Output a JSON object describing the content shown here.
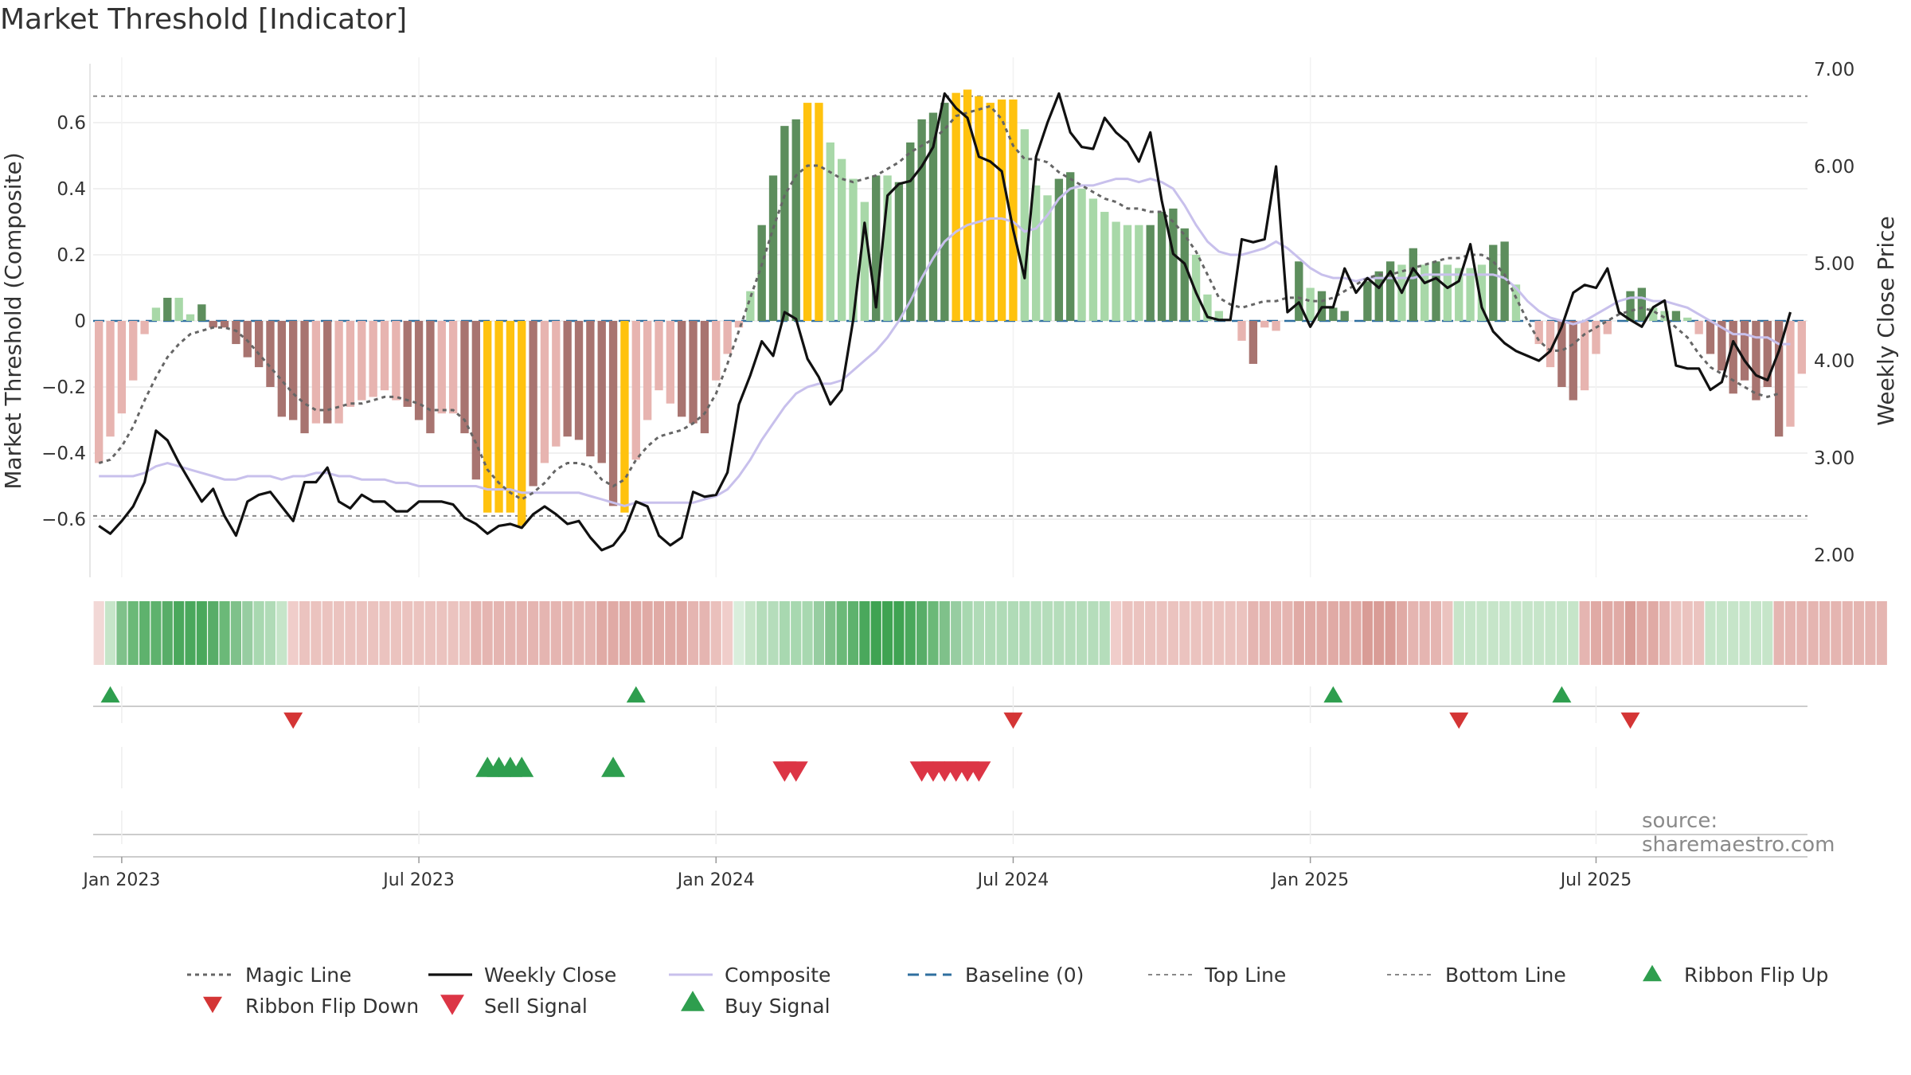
{
  "title": "Market Threshold [Indicator]",
  "source": "source: sharemaestro.com",
  "chart_data": {
    "type": "bar",
    "title": "Market Threshold [Indicator]",
    "ylabel": "Market Threshold (Composite)",
    "y2label": "Weekly Close Price",
    "ylim": [
      -0.78,
      0.78
    ],
    "y2lim": [
      1.5,
      7.0
    ],
    "yticks": [
      "0.6",
      "0.4",
      "0.2",
      "0",
      "−0.2",
      "−0.4",
      "−0.6"
    ],
    "yticks_values": [
      0.6,
      0.4,
      0.2,
      0,
      -0.2,
      -0.4,
      -0.6
    ],
    "y2ticks": [
      "7.00",
      "6.00",
      "5.00",
      "4.00",
      "3.00",
      "2.00"
    ],
    "y2ticks_values": [
      7,
      6,
      5,
      4,
      3,
      2
    ],
    "xticks": [
      "Jan 2023",
      "Jul 2023",
      "Jan 2024",
      "Jul 2024",
      "Jan 2025",
      "Jul 2025"
    ],
    "xticks_weeks": [
      2,
      28,
      54,
      80,
      106,
      131
    ],
    "top_line": 0.68,
    "bottom_line": -0.59,
    "baseline": 0,
    "composite_bars": [
      -0.43,
      -0.35,
      -0.28,
      -0.18,
      -0.04,
      0.04,
      0.07,
      0.07,
      0.02,
      0.05,
      -0.02,
      -0.02,
      -0.07,
      -0.11,
      -0.14,
      -0.2,
      -0.29,
      -0.3,
      -0.34,
      -0.31,
      -0.31,
      -0.31,
      -0.26,
      -0.24,
      -0.23,
      -0.21,
      -0.24,
      -0.26,
      -0.3,
      -0.34,
      -0.28,
      -0.28,
      -0.34,
      -0.48,
      -0.58,
      -0.58,
      -0.58,
      -0.62,
      -0.5,
      -0.43,
      -0.38,
      -0.35,
      -0.36,
      -0.41,
      -0.43,
      -0.56,
      -0.58,
      -0.42,
      -0.3,
      -0.21,
      -0.25,
      -0.29,
      -0.31,
      -0.34,
      -0.18,
      -0.1,
      -0.02,
      0.09,
      0.29,
      0.44,
      0.59,
      0.61,
      0.66,
      0.66,
      0.54,
      0.49,
      0.43,
      0.36,
      0.44,
      0.44,
      0.42,
      0.54,
      0.61,
      0.63,
      0.66,
      0.69,
      0.7,
      0.68,
      0.66,
      0.67,
      0.67,
      0.58,
      0.41,
      0.38,
      0.43,
      0.45,
      0.4,
      0.37,
      0.33,
      0.3,
      0.29,
      0.29,
      0.29,
      0.33,
      0.34,
      0.28,
      0.2,
      0.08,
      0.03,
      0.0,
      -0.06,
      -0.13,
      -0.02,
      -0.03,
      0.0,
      0.18,
      0.1,
      0.09,
      0.04,
      0.03,
      0.0,
      0.12,
      0.15,
      0.18,
      0.17,
      0.22,
      0.17,
      0.18,
      0.17,
      0.16,
      0.16,
      0.17,
      0.23,
      0.24,
      0.11,
      0.0,
      -0.07,
      -0.14,
      -0.2,
      -0.24,
      -0.21,
      -0.1,
      -0.04,
      0.0,
      0.09,
      0.1,
      0.04,
      0.03,
      0.03,
      0.01,
      -0.04,
      -0.1,
      -0.15,
      -0.22,
      -0.18,
      -0.24,
      -0.2,
      -0.35,
      -0.32,
      -0.16
    ],
    "bar_colors": [
      "#e7b4b0",
      "#e7b4b0",
      "#e7b4b0",
      "#e7b4b0",
      "#e7b4b0",
      "#a8d8a8",
      "#5d8e5d",
      "#a8d8a8",
      "#a8d8a8",
      "#5d8e5d",
      "#a87470",
      "#a87470",
      "#a87470",
      "#a87470",
      "#a87470",
      "#a87470",
      "#a87470",
      "#a87470",
      "#a87470",
      "#e7b4b0",
      "#a87470",
      "#e7b4b0",
      "#e7b4b0",
      "#e7b4b0",
      "#e7b4b0",
      "#e7b4b0",
      "#e7b4b0",
      "#a87470",
      "#a87470",
      "#a87470",
      "#e7b4b0",
      "#e7b4b0",
      "#a87470",
      "#a87470",
      "#ffc20e",
      "#ffc20e",
      "#ffc20e",
      "#ffc20e",
      "#a87470",
      "#e7b4b0",
      "#e7b4b0",
      "#a87470",
      "#a87470",
      "#a87470",
      "#a87470",
      "#a87470",
      "#ffc20e",
      "#e7b4b0",
      "#e7b4b0",
      "#e7b4b0",
      "#e7b4b0",
      "#a87470",
      "#a87470",
      "#a87470",
      "#e7b4b0",
      "#e7b4b0",
      "#e7b4b0",
      "#a8d8a8",
      "#5d8e5d",
      "#5d8e5d",
      "#5d8e5d",
      "#5d8e5d",
      "#ffc20e",
      "#ffc20e",
      "#a8d8a8",
      "#a8d8a8",
      "#a8d8a8",
      "#a8d8a8",
      "#5d8e5d",
      "#a8d8a8",
      "#5d8e5d",
      "#5d8e5d",
      "#5d8e5d",
      "#5d8e5d",
      "#5d8e5d",
      "#ffc20e",
      "#ffc20e",
      "#ffc20e",
      "#ffc20e",
      "#ffc20e",
      "#ffc20e",
      "#a8d8a8",
      "#a8d8a8",
      "#a8d8a8",
      "#5d8e5d",
      "#5d8e5d",
      "#a8d8a8",
      "#a8d8a8",
      "#a8d8a8",
      "#a8d8a8",
      "#a8d8a8",
      "#a8d8a8",
      "#5d8e5d",
      "#5d8e5d",
      "#5d8e5d",
      "#5d8e5d",
      "#a8d8a8",
      "#a8d8a8",
      "#a8d8a8",
      "#a8d8a8",
      "#e7b4b0",
      "#a87470",
      "#e7b4b0",
      "#e7b4b0",
      "#a8d8a8",
      "#5d8e5d",
      "#a8d8a8",
      "#5d8e5d",
      "#5d8e5d",
      "#5d8e5d",
      "#a8d8a8",
      "#5d8e5d",
      "#5d8e5d",
      "#5d8e5d",
      "#a8d8a8",
      "#5d8e5d",
      "#a8d8a8",
      "#5d8e5d",
      "#a8d8a8",
      "#a8d8a8",
      "#a8d8a8",
      "#a8d8a8",
      "#5d8e5d",
      "#5d8e5d",
      "#a8d8a8",
      "#a8d8a8",
      "#e7b4b0",
      "#e7b4b0",
      "#a87470",
      "#a87470",
      "#e7b4b0",
      "#e7b4b0",
      "#e7b4b0",
      "#a8d8a8",
      "#5d8e5d",
      "#5d8e5d",
      "#a8d8a8",
      "#a8d8a8",
      "#5d8e5d",
      "#a8d8a8",
      "#e7b4b0",
      "#a87470",
      "#a87470",
      "#a87470",
      "#a87470",
      "#a87470",
      "#a87470",
      "#a87470",
      "#e7b4b0",
      "#e7b4b0"
    ],
    "magic_line": [
      -0.43,
      -0.42,
      -0.38,
      -0.32,
      -0.24,
      -0.17,
      -0.11,
      -0.07,
      -0.04,
      -0.03,
      -0.02,
      -0.02,
      -0.03,
      -0.06,
      -0.1,
      -0.14,
      -0.18,
      -0.22,
      -0.25,
      -0.27,
      -0.27,
      -0.26,
      -0.25,
      -0.25,
      -0.24,
      -0.23,
      -0.23,
      -0.24,
      -0.25,
      -0.27,
      -0.27,
      -0.27,
      -0.3,
      -0.37,
      -0.45,
      -0.49,
      -0.52,
      -0.54,
      -0.52,
      -0.49,
      -0.45,
      -0.43,
      -0.43,
      -0.44,
      -0.48,
      -0.5,
      -0.48,
      -0.42,
      -0.38,
      -0.35,
      -0.34,
      -0.33,
      -0.31,
      -0.28,
      -0.22,
      -0.13,
      -0.03,
      0.07,
      0.17,
      0.28,
      0.38,
      0.44,
      0.47,
      0.47,
      0.45,
      0.43,
      0.42,
      0.43,
      0.44,
      0.46,
      0.48,
      0.51,
      0.53,
      0.55,
      0.58,
      0.62,
      0.63,
      0.64,
      0.65,
      0.61,
      0.53,
      0.49,
      0.49,
      0.48,
      0.45,
      0.43,
      0.41,
      0.39,
      0.37,
      0.36,
      0.34,
      0.34,
      0.33,
      0.33,
      0.3,
      0.26,
      0.21,
      0.14,
      0.07,
      0.05,
      0.04,
      0.05,
      0.06,
      0.06,
      0.07,
      0.07,
      0.06,
      0.06,
      0.07,
      0.09,
      0.11,
      0.13,
      0.14,
      0.14,
      0.15,
      0.16,
      0.17,
      0.18,
      0.19,
      0.19,
      0.2,
      0.2,
      0.18,
      0.14,
      0.07,
      0.0,
      -0.06,
      -0.09,
      -0.09,
      -0.07,
      -0.04,
      -0.02,
      0.0,
      0.02,
      0.03,
      0.04,
      0.03,
      0.01,
      -0.02,
      -0.05,
      -0.1,
      -0.14,
      -0.16,
      -0.18,
      -0.2,
      -0.22,
      -0.23,
      -0.22
    ],
    "weekly_close": [
      2.3,
      2.22,
      2.35,
      2.5,
      2.75,
      3.28,
      3.18,
      2.95,
      2.75,
      2.55,
      2.68,
      2.4,
      2.2,
      2.55,
      2.62,
      2.65,
      2.5,
      2.35,
      2.75,
      2.75,
      2.9,
      2.55,
      2.48,
      2.62,
      2.55,
      2.55,
      2.45,
      2.45,
      2.55,
      2.55,
      2.55,
      2.52,
      2.38,
      2.32,
      2.22,
      2.3,
      2.32,
      2.28,
      2.42,
      2.5,
      2.42,
      2.32,
      2.35,
      2.18,
      2.05,
      2.1,
      2.25,
      2.55,
      2.5,
      2.2,
      2.1,
      2.18,
      2.65,
      2.6,
      2.62,
      2.85,
      3.55,
      3.85,
      4.2,
      4.05,
      4.5,
      4.43,
      4.02,
      3.83,
      3.55,
      3.7,
      4.42,
      5.42,
      4.55,
      5.7,
      5.82,
      5.85,
      6.0,
      6.2,
      6.75,
      6.6,
      6.5,
      6.1,
      6.05,
      5.95,
      5.35,
      4.85,
      6.1,
      6.45,
      6.75,
      6.35,
      6.2,
      6.18,
      6.5,
      6.35,
      6.25,
      6.05,
      6.35,
      5.65,
      5.1,
      5.0,
      4.7,
      4.45,
      4.42,
      4.42,
      5.25,
      5.22,
      5.25,
      6.0,
      4.5,
      4.6,
      4.35,
      4.55,
      4.55,
      4.95,
      4.7,
      4.85,
      4.75,
      4.92,
      4.7,
      4.95,
      4.8,
      4.85,
      4.75,
      4.82,
      5.2,
      4.55,
      4.3,
      4.18,
      4.1,
      4.05,
      4.0,
      4.1,
      4.35,
      4.7,
      4.78,
      4.75,
      4.95,
      4.5,
      4.42,
      4.35,
      4.55,
      4.62,
      3.95,
      3.92,
      3.92,
      3.7,
      3.78,
      4.2,
      4.0,
      3.85,
      3.8,
      4.1,
      4.5
    ],
    "composite_line": [
      -0.47,
      -0.47,
      -0.47,
      -0.47,
      -0.46,
      -0.44,
      -0.43,
      -0.44,
      -0.45,
      -0.46,
      -0.47,
      -0.48,
      -0.48,
      -0.47,
      -0.47,
      -0.47,
      -0.48,
      -0.47,
      -0.47,
      -0.46,
      -0.46,
      -0.47,
      -0.47,
      -0.48,
      -0.48,
      -0.48,
      -0.49,
      -0.49,
      -0.5,
      -0.5,
      -0.5,
      -0.5,
      -0.5,
      -0.5,
      -0.51,
      -0.51,
      -0.51,
      -0.52,
      -0.52,
      -0.52,
      -0.52,
      -0.52,
      -0.52,
      -0.53,
      -0.54,
      -0.55,
      -0.56,
      -0.55,
      -0.55,
      -0.55,
      -0.55,
      -0.55,
      -0.55,
      -0.54,
      -0.53,
      -0.51,
      -0.47,
      -0.42,
      -0.36,
      -0.31,
      -0.26,
      -0.22,
      -0.2,
      -0.19,
      -0.19,
      -0.18,
      -0.15,
      -0.12,
      -0.09,
      -0.05,
      0.0,
      0.06,
      0.13,
      0.19,
      0.24,
      0.27,
      0.29,
      0.3,
      0.31,
      0.31,
      0.3,
      0.27,
      0.28,
      0.32,
      0.37,
      0.4,
      0.41,
      0.41,
      0.42,
      0.43,
      0.43,
      0.42,
      0.43,
      0.42,
      0.4,
      0.35,
      0.29,
      0.24,
      0.21,
      0.2,
      0.2,
      0.21,
      0.22,
      0.24,
      0.22,
      0.19,
      0.16,
      0.14,
      0.13,
      0.13,
      0.12,
      0.13,
      0.13,
      0.13,
      0.13,
      0.13,
      0.14,
      0.14,
      0.14,
      0.14,
      0.14,
      0.14,
      0.14,
      0.13,
      0.1,
      0.06,
      0.03,
      0.01,
      0.0,
      -0.01,
      0.0,
      0.02,
      0.04,
      0.06,
      0.07,
      0.07,
      0.06,
      0.06,
      0.05,
      0.04,
      0.02,
      0.0,
      -0.02,
      -0.04,
      -0.04,
      -0.05,
      -0.05,
      -0.07,
      -0.07
    ],
    "ribbon_colors": [
      "#f2d8d6",
      "#c6e5c9",
      "#7fc18a",
      "#6bb978",
      "#5eb26d",
      "#5eb26d",
      "#58ad68",
      "#4aa85c",
      "#4aa85c",
      "#4aa85c",
      "#58ad68",
      "#6bb978",
      "#7fc18a",
      "#97cda1",
      "#a8d8b0",
      "#b0dbb7",
      "#c6e5c9",
      "#f0cdca",
      "#ebc3bf",
      "#ebc3bf",
      "#ebc3bf",
      "#ebc3bf",
      "#ebc3bf",
      "#ebc3bf",
      "#ebc3bf",
      "#ebc3bf",
      "#ebc3bf",
      "#ebc3bf",
      "#ebc3bf",
      "#ebc3bf",
      "#ebc3bf",
      "#ebc3bf",
      "#ebc3bf",
      "#e5b5b1",
      "#e5b5b1",
      "#e5b5b1",
      "#e5b5b1",
      "#e5b5b1",
      "#e5b5b1",
      "#e5b5b1",
      "#e5b5b1",
      "#e5b5b1",
      "#e5b5b1",
      "#e5b5b1",
      "#e0aaa5",
      "#e0aaa5",
      "#e0aaa5",
      "#e0aaa5",
      "#e0aaa5",
      "#e0aaa5",
      "#e0aaa5",
      "#e0aaa5",
      "#e5b5b1",
      "#e5b5b1",
      "#eac0bc",
      "#f0cdca",
      "#d9eedc",
      "#c6e5c9",
      "#b5ddbb",
      "#b5ddbb",
      "#a8d8b0",
      "#a8d8b0",
      "#a8d8b0",
      "#97cda1",
      "#7fc18a",
      "#6bb978",
      "#5eb26d",
      "#4aa85c",
      "#3fa352",
      "#3fa352",
      "#3fa352",
      "#4aa85c",
      "#58ad68",
      "#6bb978",
      "#7fc18a",
      "#97cda1",
      "#a8d8b0",
      "#b0dbb7",
      "#b0dbb7",
      "#b0dbb7",
      "#b0dbb7",
      "#b0dbb7",
      "#b5ddbb",
      "#b5ddbb",
      "#b5ddbb",
      "#b5ddbb",
      "#b5ddbb",
      "#b5ddbb",
      "#b5ddbb",
      "#f0cdca",
      "#ebc3bf",
      "#ebc3bf",
      "#ebc3bf",
      "#ebc3bf",
      "#ebc3bf",
      "#ebc3bf",
      "#ebc3bf",
      "#ebc3bf",
      "#ebc3bf",
      "#ebc3bf",
      "#ebc3bf",
      "#e5b5b1",
      "#e5b5b1",
      "#e5b5b1",
      "#e5b5b1",
      "#e0aaa5",
      "#e0aaa5",
      "#e0aaa5",
      "#e0aaa5",
      "#e0aaa5",
      "#e0aaa5",
      "#d99c96",
      "#d99c96",
      "#d99c96",
      "#e0aaa5",
      "#e5b5b1",
      "#e5b5b1",
      "#e5b5b1",
      "#ebc3bf",
      "#c6e5c9",
      "#c6e5c9",
      "#c6e5c9",
      "#c6e5c9",
      "#c6e5c9",
      "#c6e5c9",
      "#c6e5c9",
      "#c6e5c9",
      "#c6e5c9",
      "#c6e5c9",
      "#c6e5c9",
      "#e5b5b1",
      "#e0aaa5",
      "#e0aaa5",
      "#e0aaa5",
      "#d99c96",
      "#e0aaa5",
      "#e0aaa5",
      "#e5b5b1",
      "#ebc3bf",
      "#ebc3bf",
      "#ebc3bf",
      "#c6e5c9",
      "#c6e5c9",
      "#c6e5c9",
      "#c6e5c9",
      "#c6e5c9",
      "#c6e5c9",
      "#e5b5b1",
      "#e5b5b1",
      "#e5b5b1",
      "#e5b5b1",
      "#e5b5b1",
      "#e5b5b1",
      "#e5b5b1",
      "#e5b5b1",
      "#e5b5b1",
      "#e5b5b1"
    ],
    "ribbon_flip_up_weeks": [
      1,
      47,
      108,
      128
    ],
    "ribbon_flip_down_weeks": [
      17,
      80,
      119,
      134
    ],
    "buy_signal_weeks": [
      34,
      35,
      36,
      37,
      45
    ],
    "sell_signal_weeks": [
      60,
      61,
      72,
      73,
      74,
      75,
      76,
      77
    ]
  },
  "legend": {
    "magic_line": "Magic Line",
    "weekly_close": "Weekly Close",
    "composite": "Composite",
    "baseline": "Baseline (0)",
    "top_line": "Top Line",
    "bottom_line": "Bottom Line",
    "ribbon_flip_up": "Ribbon Flip Up",
    "ribbon_flip_down": "Ribbon Flip Down",
    "sell_signal": "Sell Signal",
    "buy_signal": "Buy Signal"
  },
  "colors": {
    "magic_line": "#666666",
    "weekly_close": "#111111",
    "composite": "#c8c0ec",
    "baseline": "#2f6f9f",
    "ref_line": "#888888",
    "flip_up": "#2e9e4e",
    "flip_down": "#d43535",
    "sell": "#dc3545",
    "buy": "#2e9e4e"
  }
}
